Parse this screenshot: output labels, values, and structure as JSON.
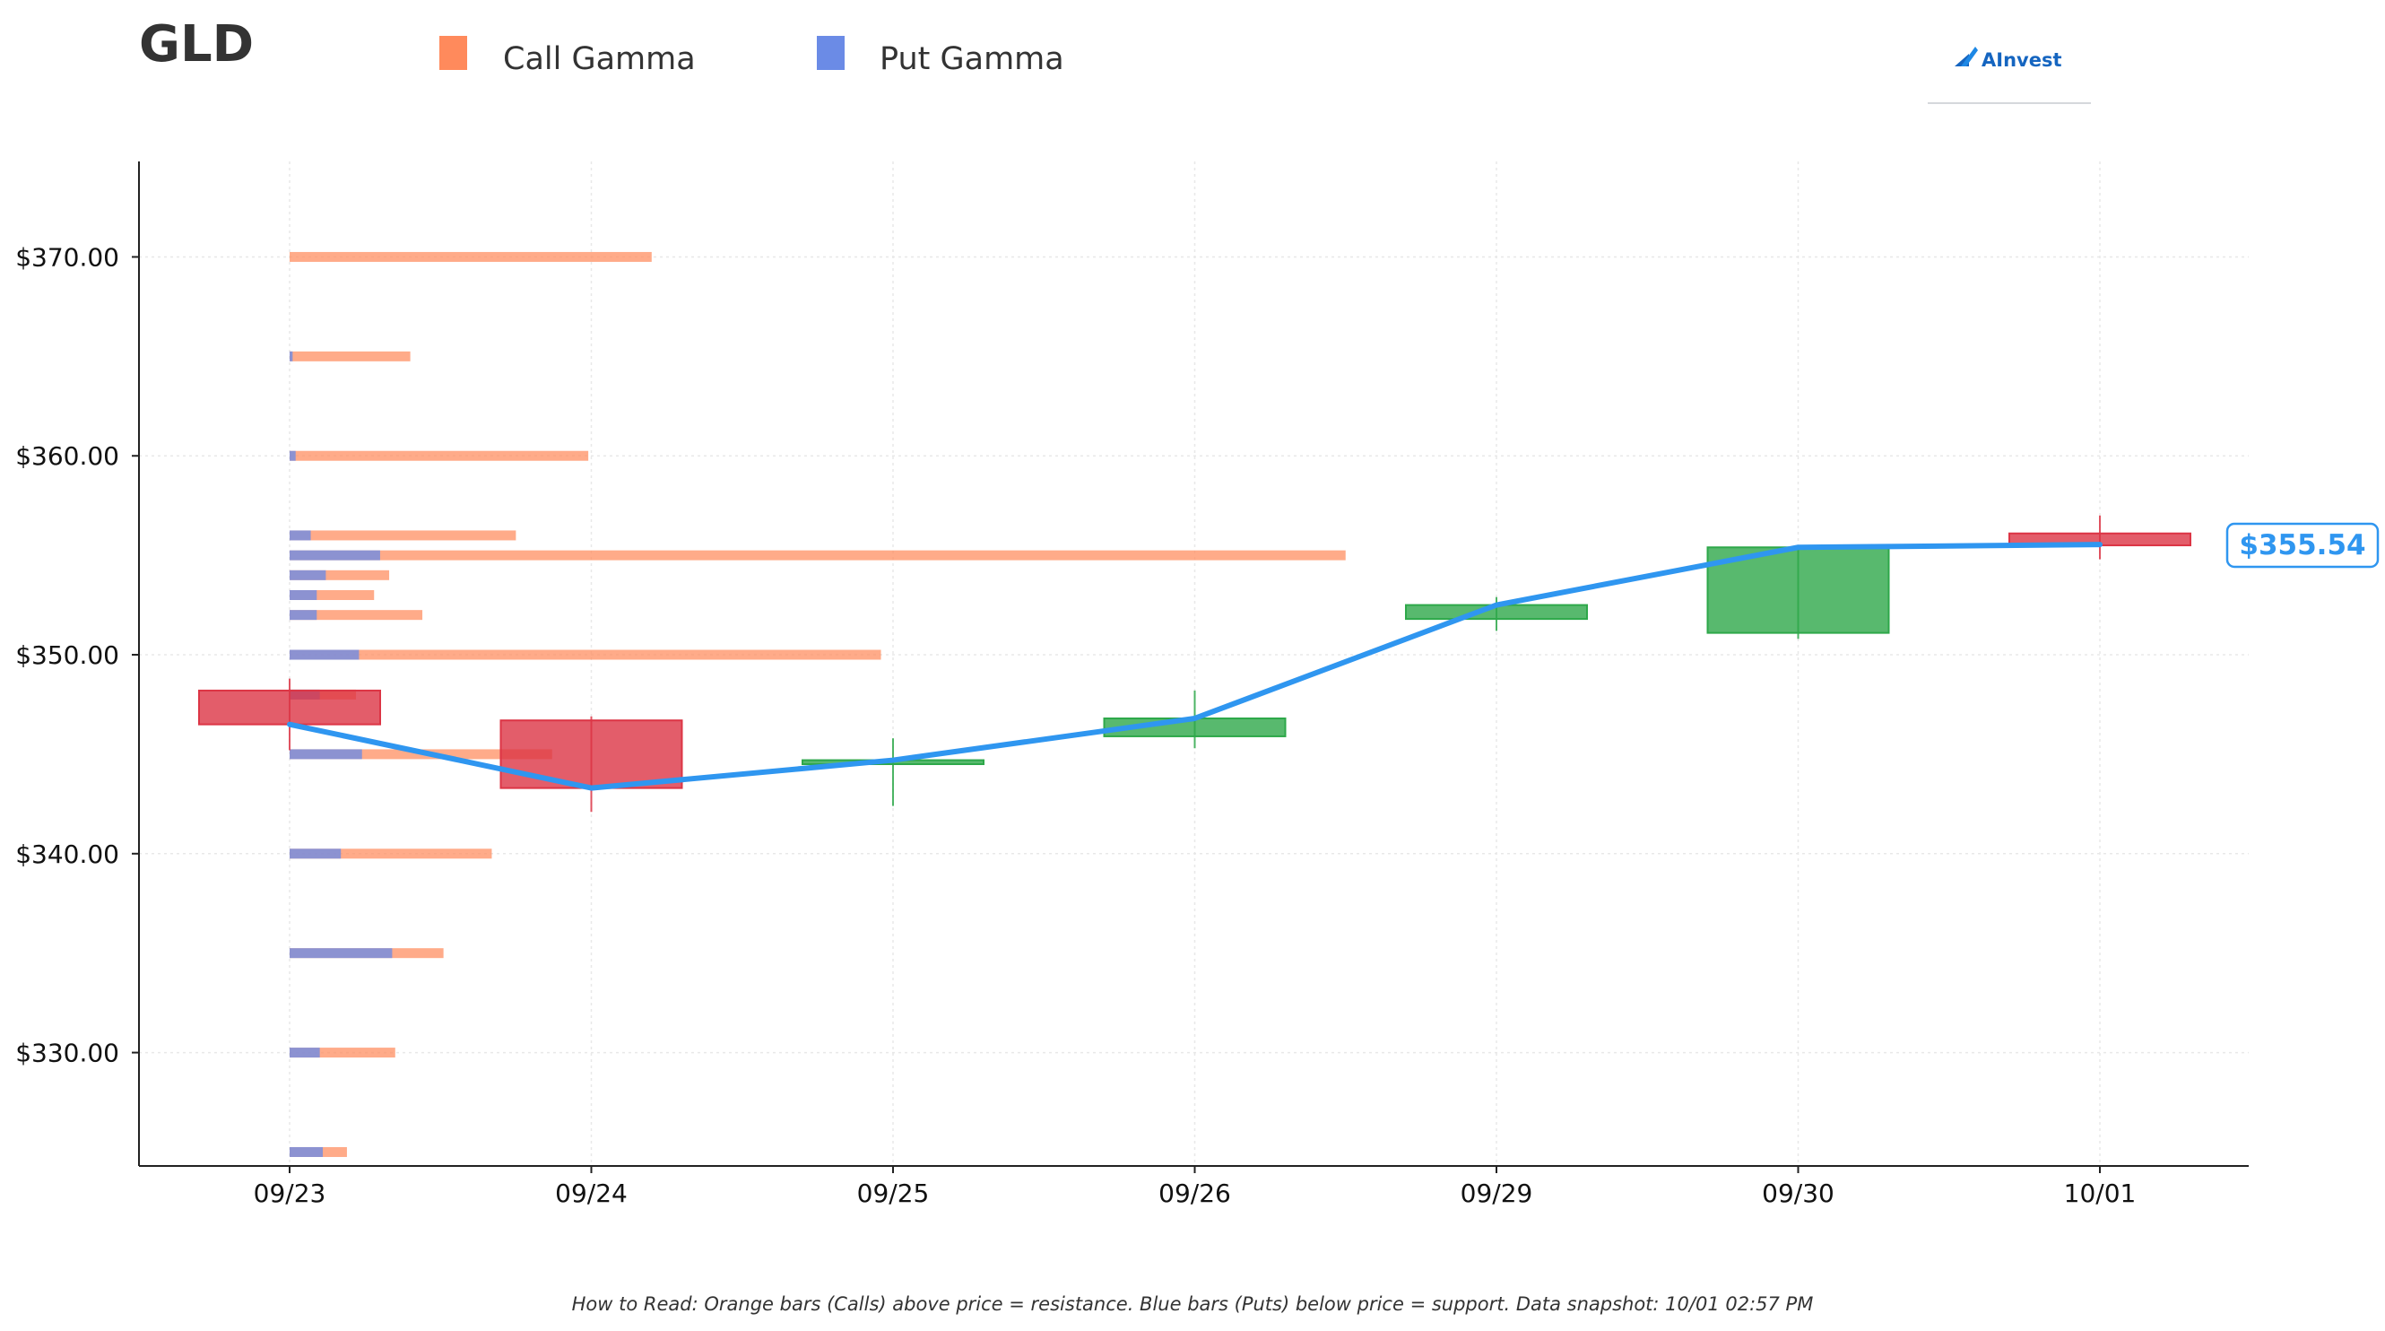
{
  "chart_data": {
    "type": "candlestick",
    "title": "GLD",
    "legend": [
      {
        "label": "Call Gamma",
        "color": "#ff8a5c"
      },
      {
        "label": "Put Gamma",
        "color": "#6b8be6"
      }
    ],
    "legend_position": "top",
    "categories": [
      "09/23",
      "09/24",
      "09/25",
      "09/26",
      "09/29",
      "09/30",
      "10/01"
    ],
    "y_ticks": [
      330,
      340,
      350,
      360,
      370
    ],
    "y_tick_labels": [
      "$330.00",
      "$340.00",
      "$350.00",
      "$360.00",
      "$370.00"
    ],
    "ylim": [
      324.3,
      374.8
    ],
    "grid": true,
    "candles": [
      {
        "date": "09/23",
        "open": 348.2,
        "high": 348.8,
        "low": 345.2,
        "close": 346.5
      },
      {
        "date": "09/24",
        "open": 346.7,
        "high": 346.9,
        "low": 342.1,
        "close": 343.3
      },
      {
        "date": "09/25",
        "open": 344.5,
        "high": 345.8,
        "low": 342.4,
        "close": 344.7
      },
      {
        "date": "09/26",
        "open": 345.9,
        "high": 348.2,
        "low": 345.3,
        "close": 346.8
      },
      {
        "date": "09/29",
        "open": 351.8,
        "high": 352.9,
        "low": 351.2,
        "close": 352.5
      },
      {
        "date": "09/30",
        "open": 351.1,
        "high": 355.5,
        "low": 350.8,
        "close": 355.4
      },
      {
        "date": "10/01",
        "open": 356.1,
        "high": 357.0,
        "low": 354.8,
        "close": 355.5
      }
    ],
    "close_line": [
      346.5,
      343.3,
      344.7,
      346.8,
      352.5,
      355.4,
      355.54
    ],
    "gamma_scale_max_days": 3.5,
    "gamma_bars": [
      {
        "strike": 370,
        "call": 1.2,
        "put": 0
      },
      {
        "strike": 365,
        "call": 0.4,
        "put": 0.01
      },
      {
        "strike": 360,
        "call": 0.99,
        "put": 0.02
      },
      {
        "strike": 356,
        "call": 0.75,
        "put": 0.07
      },
      {
        "strike": 355,
        "call": 3.5,
        "put": 0.3
      },
      {
        "strike": 354,
        "call": 0.33,
        "put": 0.12
      },
      {
        "strike": 353,
        "call": 0.28,
        "put": 0.09
      },
      {
        "strike": 352,
        "call": 0.44,
        "put": 0.09
      },
      {
        "strike": 350,
        "call": 1.96,
        "put": 0.23
      },
      {
        "strike": 348,
        "call": 0.22,
        "put": 0.1
      },
      {
        "strike": 345,
        "call": 0.87,
        "put": 0.24
      },
      {
        "strike": 340,
        "call": 0.67,
        "put": 0.17
      },
      {
        "strike": 335,
        "call": 0.51,
        "put": 0.34
      },
      {
        "strike": 330,
        "call": 0.35,
        "put": 0.1
      },
      {
        "strike": 325,
        "call": 0.19,
        "put": 0.11
      }
    ],
    "current_price_label": "$355.54",
    "colors": {
      "call": "#ff8a5c",
      "put": "#6b8be6",
      "up": "#2ea84a",
      "down": "#dc3545",
      "line": "#2f96f0",
      "axis": "#222222",
      "grid": "#e8e8e8"
    }
  },
  "brand": {
    "name": "AInvest",
    "color": "#1565c0"
  },
  "footnote": "How to Read: Orange bars (Calls) above price = resistance. Blue bars (Puts) below price = support. Data snapshot: 10/01 02:57 PM"
}
